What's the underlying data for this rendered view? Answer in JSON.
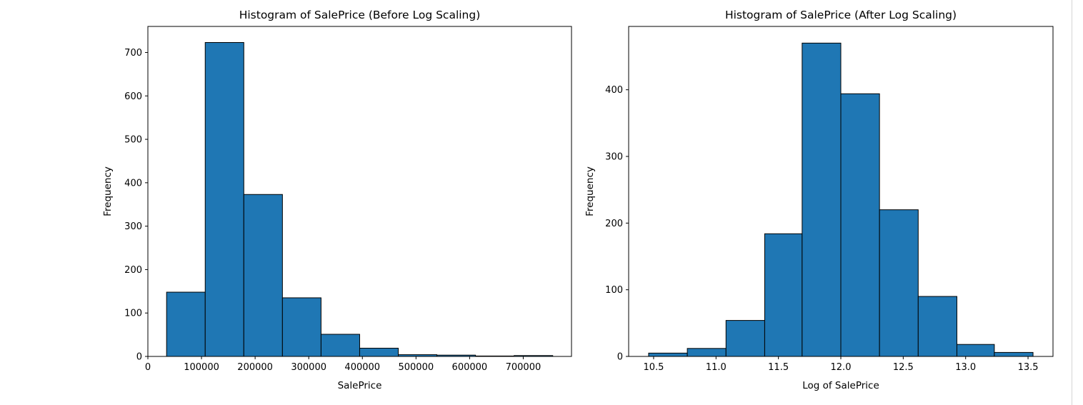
{
  "chart_data": [
    {
      "type": "bar",
      "title": "Histogram of SalePrice (Before Log Scaling)",
      "xlabel": "SalePrice",
      "ylabel": "Frequency",
      "bin_edges": [
        34900,
        106910,
        178920,
        250930,
        322940,
        394950,
        466960,
        538970,
        610980,
        682990,
        755000
      ],
      "values": [
        148,
        723,
        373,
        135,
        51,
        19,
        4,
        3,
        1,
        2
      ],
      "xlim": [
        0,
        790000
      ],
      "ylim": [
        0,
        760
      ],
      "xticks": [
        0,
        100000,
        200000,
        300000,
        400000,
        500000,
        600000,
        700000
      ],
      "xtick_labels": [
        "0",
        "100000",
        "200000",
        "300000",
        "400000",
        "500000",
        "600000",
        "700000"
      ],
      "yticks": [
        0,
        100,
        200,
        300,
        400,
        500,
        600,
        700
      ],
      "ytick_labels": [
        "0",
        "100",
        "200",
        "300",
        "400",
        "500",
        "600",
        "700"
      ],
      "bar_color": "#1f77b4",
      "edge_color": "#000000",
      "grid": false
    },
    {
      "type": "bar",
      "title": "Histogram of SalePrice (After Log Scaling)",
      "xlabel": "Log of SalePrice",
      "ylabel": "Frequency",
      "bin_edges": [
        10.46,
        10.77,
        11.08,
        11.39,
        11.69,
        12.0,
        12.31,
        12.62,
        12.93,
        13.23,
        13.54
      ],
      "values": [
        5,
        12,
        54,
        184,
        470,
        394,
        220,
        90,
        18,
        6
      ],
      "xlim": [
        10.3,
        13.7
      ],
      "ylim": [
        0,
        495
      ],
      "xticks": [
        10.5,
        11.0,
        11.5,
        12.0,
        12.5,
        13.0,
        13.5
      ],
      "xtick_labels": [
        "10.5",
        "11.0",
        "11.5",
        "12.0",
        "12.5",
        "13.0",
        "13.5"
      ],
      "yticks": [
        0,
        100,
        200,
        300,
        400
      ],
      "ytick_labels": [
        "0",
        "100",
        "200",
        "300",
        "400"
      ],
      "bar_color": "#1f77b4",
      "edge_color": "#000000",
      "grid": false
    }
  ]
}
